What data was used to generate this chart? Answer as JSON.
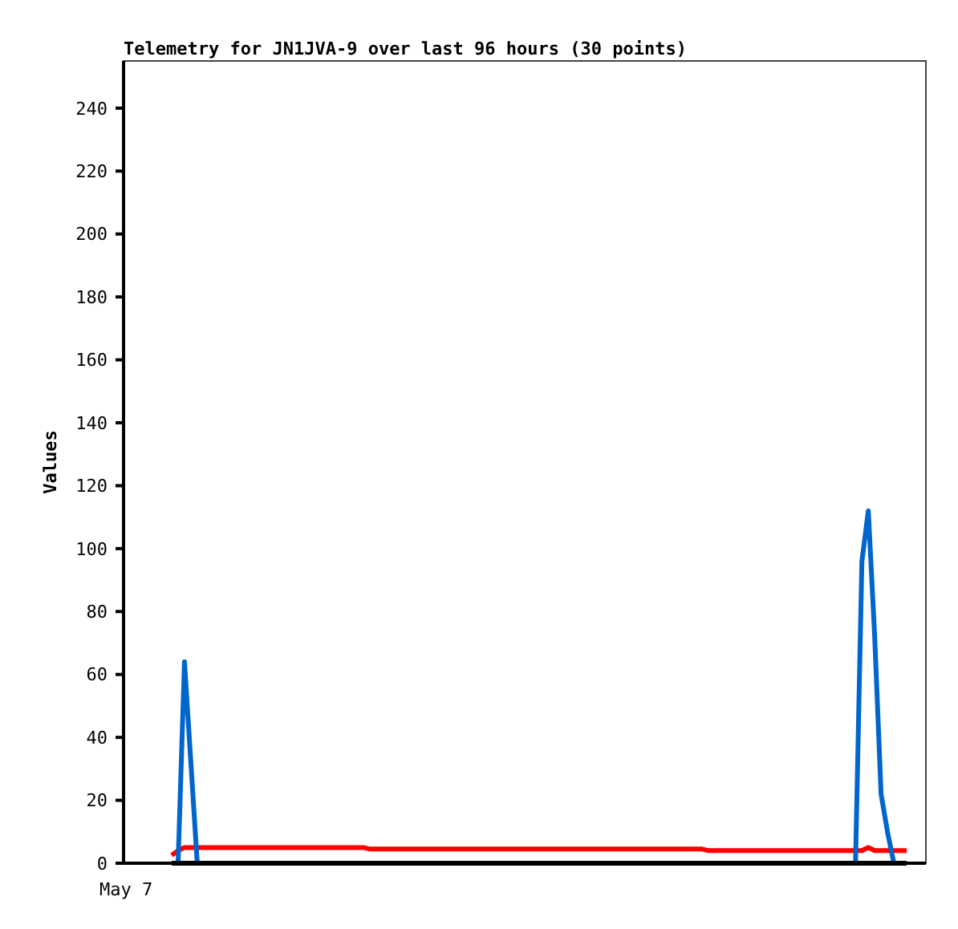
{
  "chart_data": {
    "type": "line",
    "title": "Telemetry for JN1JVA-9 over last 96 hours (30 points)",
    "ylabel": "Values",
    "annotations": [
      "May 7"
    ],
    "categories": [
      null,
      null,
      null,
      null,
      null,
      null,
      null,
      null,
      null,
      null,
      null,
      null,
      null,
      null,
      null,
      null,
      null,
      null,
      null,
      null,
      null,
      null,
      null,
      null,
      null,
      null,
      null,
      null,
      null,
      null,
      null,
      null,
      null,
      null,
      null,
      null,
      null,
      null,
      null,
      null,
      null,
      null,
      null,
      null,
      null,
      null,
      null,
      null,
      null,
      null,
      null,
      null,
      null,
      null,
      null,
      null,
      null,
      null,
      null,
      null,
      null,
      null,
      null,
      null,
      null,
      null,
      null,
      null,
      null,
      null,
      null,
      null,
      null,
      null,
      null,
      null,
      null,
      null,
      null,
      null,
      null,
      null,
      null,
      null,
      null,
      null,
      null,
      null,
      null,
      null,
      null,
      null,
      null,
      null,
      null,
      null,
      null,
      null,
      null,
      null,
      null,
      null,
      null,
      null,
      null,
      null,
      null,
      null,
      null,
      null,
      null,
      null,
      null,
      null,
      null,
      null
    ],
    "ylim": [
      0,
      255
    ],
    "yticks": [
      0,
      20,
      40,
      60,
      80,
      100,
      120,
      140,
      160,
      180,
      200,
      220,
      240
    ],
    "marker": "none",
    "line_style": "solid",
    "series": [
      {
        "color": "#ff0000",
        "values": [
          2.5,
          4,
          5,
          5,
          5,
          5,
          5,
          5,
          5,
          5,
          5,
          5,
          5,
          5,
          5,
          5,
          5,
          5,
          5,
          5,
          5,
          5,
          5,
          5,
          5,
          5,
          5,
          5,
          5,
          5,
          5,
          4.5,
          4.5,
          4.5,
          4.5,
          4.5,
          4.5,
          4.5,
          4.5,
          4.5,
          4.5,
          4.5,
          4.5,
          4.5,
          4.5,
          4.5,
          4.5,
          4.5,
          4.5,
          4.5,
          4.5,
          4.5,
          4.5,
          4.5,
          4.5,
          4.5,
          4.5,
          4.5,
          4.5,
          4.5,
          4.5,
          4.5,
          4.5,
          4.5,
          4.5,
          4.5,
          4.5,
          4.5,
          4.5,
          4.5,
          4.5,
          4.5,
          4.5,
          4.5,
          4.5,
          4.5,
          4.5,
          4.5,
          4.5,
          4.5,
          4.5,
          4.5,
          4.5,
          4.5,
          4,
          4,
          4,
          4,
          4,
          4,
          4,
          4,
          4,
          4,
          4,
          4,
          4,
          4,
          4,
          4,
          4,
          4,
          4,
          4,
          4,
          4,
          4,
          4,
          4,
          5,
          4,
          4,
          4,
          4,
          4,
          4
        ]
      },
      {
        "color": "#0066cc",
        "values": [
          null,
          0,
          64,
          32,
          0,
          null,
          null,
          null,
          null,
          null,
          null,
          null,
          null,
          null,
          null,
          null,
          null,
          null,
          null,
          null,
          null,
          null,
          null,
          null,
          null,
          null,
          null,
          null,
          null,
          null,
          null,
          null,
          null,
          null,
          null,
          null,
          null,
          null,
          null,
          null,
          null,
          null,
          null,
          null,
          null,
          null,
          null,
          null,
          null,
          null,
          null,
          null,
          null,
          null,
          null,
          null,
          null,
          null,
          null,
          null,
          null,
          null,
          null,
          null,
          null,
          null,
          null,
          null,
          null,
          null,
          null,
          null,
          null,
          null,
          null,
          null,
          null,
          null,
          null,
          null,
          null,
          null,
          null,
          null,
          null,
          null,
          null,
          null,
          null,
          null,
          null,
          null,
          null,
          null,
          null,
          null,
          null,
          null,
          null,
          null,
          null,
          null,
          null,
          null,
          null,
          null,
          null,
          0,
          96,
          112,
          72,
          22,
          10,
          0,
          null,
          null
        ]
      },
      {
        "color": "#000000",
        "values": [
          0,
          0,
          0,
          0,
          0,
          0,
          0,
          0,
          0,
          0,
          0,
          0,
          0,
          0,
          0,
          0,
          0,
          0,
          0,
          0,
          0,
          0,
          0,
          0,
          0,
          0,
          0,
          0,
          0,
          0,
          0,
          0,
          0,
          0,
          0,
          0,
          0,
          0,
          0,
          0,
          0,
          0,
          0,
          0,
          0,
          0,
          0,
          0,
          0,
          0,
          0,
          0,
          0,
          0,
          0,
          0,
          0,
          0,
          0,
          0,
          0,
          0,
          0,
          0,
          0,
          0,
          0,
          0,
          0,
          0,
          0,
          0,
          0,
          0,
          0,
          0,
          0,
          0,
          0,
          0,
          0,
          0,
          0,
          0,
          0,
          0,
          0,
          0,
          0,
          0,
          0,
          0,
          0,
          0,
          0,
          0,
          0,
          0,
          0,
          0,
          0,
          0,
          0,
          0,
          0,
          0,
          0,
          0,
          0,
          0,
          0,
          0,
          0,
          0,
          0,
          0
        ]
      }
    ]
  }
}
